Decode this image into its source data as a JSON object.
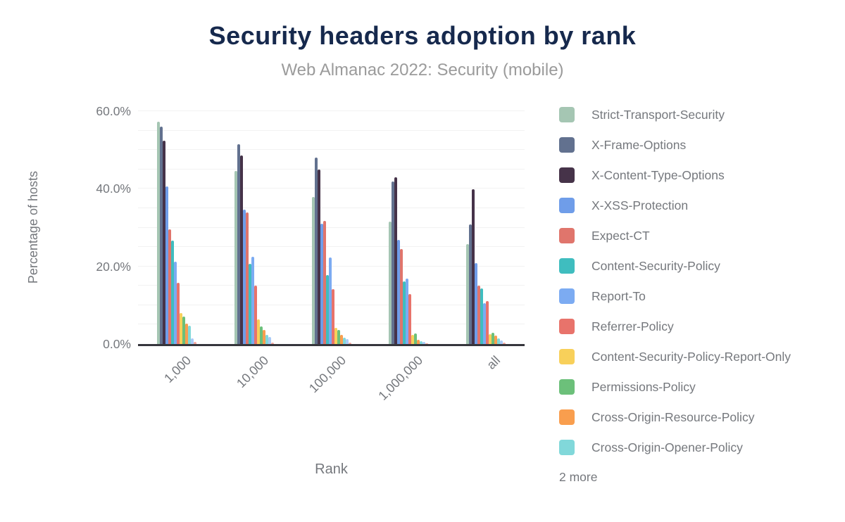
{
  "page": {
    "title": "Security headers adoption by rank",
    "subtitle": "Web Almanac 2022: Security (mobile)"
  },
  "chart_data": {
    "type": "bar",
    "title": "Security headers adoption by rank",
    "subtitle": "Web Almanac 2022: Security (mobile)",
    "xlabel": "Rank",
    "ylabel": "Percentage of hosts",
    "categories": [
      "1,000",
      "10,000",
      "100,000",
      "1,000,000",
      "all"
    ],
    "y_axis": {
      "min": 0,
      "max": 60,
      "grid_step": 5,
      "ticks": [
        {
          "value": 0,
          "label": "0.0%"
        },
        {
          "value": 20,
          "label": "20.0%"
        },
        {
          "value": 40,
          "label": "40.0%"
        },
        {
          "value": 60,
          "label": "60.0%"
        }
      ]
    },
    "grid": true,
    "legend": {
      "position": "right",
      "visible_items": 12,
      "overflow_label": "2 more"
    },
    "series": [
      {
        "name": "Strict-Transport-Security",
        "color": "#a5c6b3",
        "in_legend": true,
        "values": [
          57.2,
          44.6,
          37.8,
          31.5,
          25.7
        ]
      },
      {
        "name": "X-Frame-Options",
        "color": "#62718f",
        "in_legend": true,
        "values": [
          56.0,
          51.4,
          48.0,
          41.8,
          30.9
        ]
      },
      {
        "name": "X-Content-Type-Options",
        "color": "#463349",
        "in_legend": true,
        "values": [
          52.3,
          48.6,
          44.9,
          42.9,
          39.8
        ]
      },
      {
        "name": "X-XSS-Protection",
        "color": "#6f9de9",
        "in_legend": true,
        "values": [
          40.6,
          34.6,
          31.0,
          26.9,
          20.8
        ]
      },
      {
        "name": "Expect-CT",
        "color": "#e0756c",
        "in_legend": true,
        "values": [
          29.5,
          33.9,
          31.8,
          24.4,
          15.1
        ]
      },
      {
        "name": "Content-Security-Policy",
        "color": "#3fbdbf",
        "in_legend": true,
        "values": [
          26.7,
          20.6,
          17.8,
          16.1,
          14.3
        ]
      },
      {
        "name": "Report-To",
        "color": "#7cabf2",
        "in_legend": true,
        "values": [
          21.2,
          22.4,
          22.3,
          16.9,
          10.5
        ]
      },
      {
        "name": "Referrer-Policy",
        "color": "#e8736b",
        "in_legend": true,
        "values": [
          15.7,
          15.1,
          14.2,
          12.8,
          11.0
        ]
      },
      {
        "name": "Content-Security-Policy-Report-Only",
        "color": "#f8d05a",
        "in_legend": true,
        "values": [
          7.9,
          6.3,
          4.2,
          2.3,
          2.5
        ]
      },
      {
        "name": "Permissions-Policy",
        "color": "#6cc07a",
        "in_legend": true,
        "values": [
          7.0,
          4.5,
          3.7,
          2.8,
          2.9
        ]
      },
      {
        "name": "Cross-Origin-Resource-Policy",
        "color": "#f99e4e",
        "in_legend": true,
        "values": [
          5.2,
          3.6,
          2.3,
          1.1,
          2.1
        ]
      },
      {
        "name": "Cross-Origin-Opener-Policy",
        "color": "#81d8da",
        "in_legend": true,
        "values": [
          4.7,
          2.4,
          1.6,
          0.7,
          1.4
        ]
      },
      {
        "name": "unlabeled-1",
        "color": "#aacaf8",
        "in_legend": false,
        "values": [
          1.4,
          1.8,
          1.2,
          0.5,
          0.9
        ]
      },
      {
        "name": "unlabeled-2",
        "color": "#f2a69f",
        "in_legend": false,
        "values": [
          0.5,
          0.4,
          0.3,
          0.2,
          0.3
        ]
      }
    ]
  },
  "colors": {
    "title": "#16294d",
    "subtitle": "#9b9b9b",
    "axis_text": "#75787d",
    "gridline": "#f2f2f2",
    "baseline": "#36363c",
    "background": "#ffffff"
  }
}
